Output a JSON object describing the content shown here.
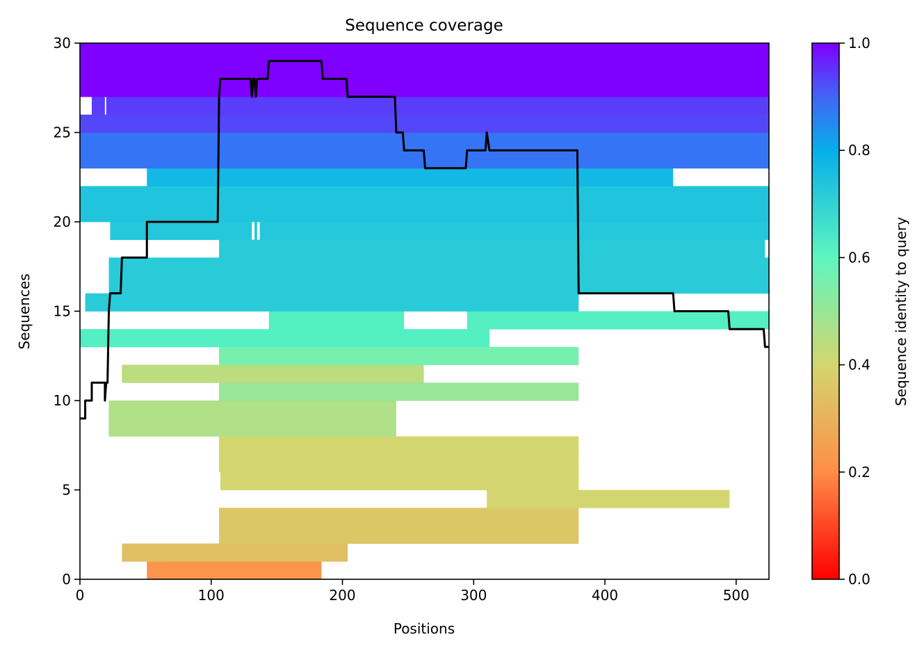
{
  "chart_data": {
    "type": "heatmap",
    "title": "Sequence coverage",
    "xlabel": "Positions",
    "ylabel": "Sequences",
    "xlim": [
      0,
      525
    ],
    "ylim": [
      0,
      30
    ],
    "xticks": [
      0,
      100,
      200,
      300,
      400,
      500
    ],
    "yticks": [
      0,
      5,
      10,
      15,
      20,
      25,
      30
    ],
    "colormap": "rainbow",
    "colorbar": {
      "label": "Sequence identity to query",
      "range": [
        0,
        1
      ],
      "ticks": [
        0.0,
        0.2,
        0.4,
        0.6,
        0.8,
        1.0
      ],
      "tick_labels": [
        "0.0",
        "0.2",
        "0.4",
        "0.6",
        "0.8",
        "1.0"
      ]
    },
    "rows": [
      {
        "row": 0,
        "identity": 0.22,
        "segments": [
          [
            51,
            184
          ]
        ]
      },
      {
        "row": 1,
        "identity": 0.34,
        "segments": [
          [
            32,
            204
          ]
        ]
      },
      {
        "row": 2,
        "identity": 0.36,
        "segments": [
          [
            106,
            380
          ]
        ]
      },
      {
        "row": 3,
        "identity": 0.36,
        "segments": [
          [
            106,
            380
          ]
        ]
      },
      {
        "row": 4,
        "identity": 0.4,
        "segments": [
          [
            310,
            495
          ]
        ]
      },
      {
        "row": 5,
        "identity": 0.4,
        "segments": [
          [
            107,
            380
          ]
        ]
      },
      {
        "row": 6,
        "identity": 0.4,
        "segments": [
          [
            106,
            380
          ]
        ]
      },
      {
        "row": 7,
        "identity": 0.4,
        "segments": [
          [
            106,
            380
          ]
        ]
      },
      {
        "row": 8,
        "identity": 0.46,
        "segments": [
          [
            22,
            241
          ]
        ]
      },
      {
        "row": 9,
        "identity": 0.46,
        "segments": [
          [
            22,
            241
          ]
        ]
      },
      {
        "row": 10,
        "identity": 0.5,
        "segments": [
          [
            106,
            380
          ]
        ]
      },
      {
        "row": 11,
        "identity": 0.44,
        "segments": [
          [
            32,
            262
          ]
        ]
      },
      {
        "row": 12,
        "identity": 0.56,
        "segments": [
          [
            106,
            380
          ]
        ]
      },
      {
        "row": 13,
        "identity": 0.62,
        "segments": [
          [
            0,
            312
          ]
        ]
      },
      {
        "row": 14,
        "identity": 0.62,
        "segments": [
          [
            144,
            247
          ],
          [
            295,
            525
          ]
        ]
      },
      {
        "row": 15,
        "identity": 0.72,
        "segments": [
          [
            4,
            380
          ]
        ]
      },
      {
        "row": 16,
        "identity": 0.72,
        "segments": [
          [
            22,
            525
          ]
        ]
      },
      {
        "row": 17,
        "identity": 0.72,
        "segments": [
          [
            22,
            525
          ]
        ]
      },
      {
        "row": 18,
        "identity": 0.72,
        "segments": [
          [
            106,
            522
          ]
        ]
      },
      {
        "row": 19,
        "identity": 0.73,
        "segments": [
          [
            23,
            131
          ],
          [
            133,
            135
          ],
          [
            137,
            525
          ]
        ]
      },
      {
        "row": 20,
        "identity": 0.74,
        "segments": [
          [
            0,
            525
          ]
        ]
      },
      {
        "row": 21,
        "identity": 0.74,
        "segments": [
          [
            0,
            525
          ]
        ]
      },
      {
        "row": 22,
        "identity": 0.77,
        "segments": [
          [
            51,
            452
          ]
        ]
      },
      {
        "row": 23,
        "identity": 0.88,
        "segments": [
          [
            0,
            525
          ]
        ]
      },
      {
        "row": 24,
        "identity": 0.88,
        "segments": [
          [
            0,
            525
          ]
        ]
      },
      {
        "row": 25,
        "identity": 0.93,
        "segments": [
          [
            0,
            525
          ]
        ]
      },
      {
        "row": 26,
        "identity": 0.94,
        "segments": [
          [
            9,
            19
          ],
          [
            20,
            525
          ]
        ]
      },
      {
        "row": 27,
        "identity": 1.0,
        "segments": [
          [
            0,
            525
          ]
        ]
      },
      {
        "row": 28,
        "identity": 1.0,
        "segments": [
          [
            0,
            525
          ]
        ]
      },
      {
        "row": 29,
        "identity": 1.0,
        "segments": [
          [
            0,
            525
          ]
        ]
      }
    ],
    "coverage_line": {
      "color": "#000000",
      "points": [
        [
          0,
          9
        ],
        [
          4,
          9
        ],
        [
          4,
          10
        ],
        [
          9,
          10
        ],
        [
          9,
          11
        ],
        [
          19,
          11
        ],
        [
          19,
          10
        ],
        [
          20,
          11
        ],
        [
          21,
          11
        ],
        [
          22,
          15
        ],
        [
          23,
          16
        ],
        [
          31,
          16
        ],
        [
          32,
          18
        ],
        [
          51,
          18
        ],
        [
          51,
          20
        ],
        [
          105,
          20
        ],
        [
          106,
          27
        ],
        [
          107,
          28
        ],
        [
          130,
          28
        ],
        [
          131,
          27
        ],
        [
          132,
          28
        ],
        [
          133,
          28
        ],
        [
          134,
          27
        ],
        [
          135,
          28
        ],
        [
          143,
          28
        ],
        [
          144,
          29
        ],
        [
          184,
          29
        ],
        [
          185,
          28
        ],
        [
          203,
          28
        ],
        [
          204,
          27
        ],
        [
          240,
          27
        ],
        [
          241,
          25
        ],
        [
          246,
          25
        ],
        [
          247,
          24
        ],
        [
          262,
          24
        ],
        [
          263,
          23
        ],
        [
          294,
          23
        ],
        [
          295,
          24
        ],
        [
          309,
          24
        ],
        [
          310,
          25
        ],
        [
          312,
          24
        ],
        [
          379,
          24
        ],
        [
          380,
          16
        ],
        [
          452,
          16
        ],
        [
          453,
          15
        ],
        [
          494,
          15
        ],
        [
          495,
          14
        ],
        [
          521,
          14
        ],
        [
          522,
          13
        ],
        [
          525,
          13
        ]
      ]
    }
  }
}
